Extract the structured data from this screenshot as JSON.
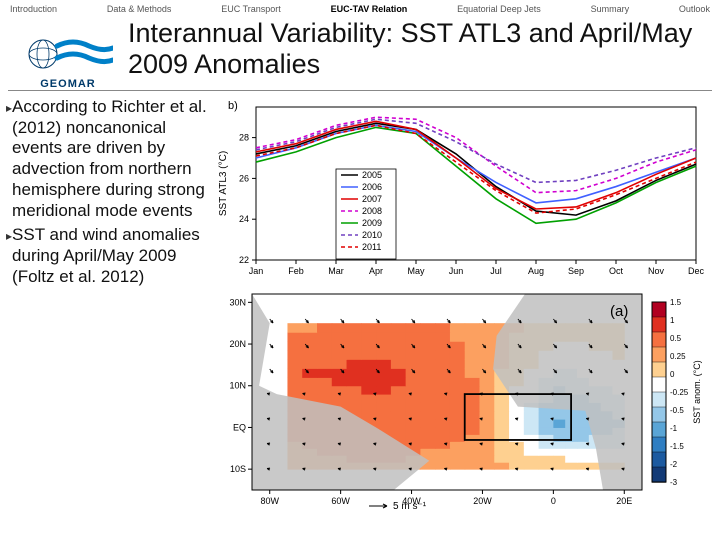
{
  "nav": {
    "items": [
      "Introduction",
      "Data & Methods",
      "EUC Transport",
      "EUC-TAV Relation",
      "Equatorial Deep Jets",
      "Summary",
      "Outlook"
    ],
    "active_index": 3
  },
  "logo": {
    "text": "GEOMAR",
    "wave_color": "#0080c8",
    "globe_color": "#003a6a"
  },
  "title": "Interannual Variability: SST ATL3 and April/May 2009 Anomalies",
  "bullets": [
    "According to Richter et al. (2012) noncanonical events are driven by advection from northern hemisphere during strong meridional mode events",
    "SST and wind anomalies during April/May 2009 (Foltz et al. 2012)"
  ],
  "linechart": {
    "type": "line",
    "panel_label": "b)",
    "ylabel": "SST ATL3 (°C)",
    "xticks": [
      "Jan",
      "Feb",
      "Mar",
      "Apr",
      "May",
      "Jun",
      "Jul",
      "Aug",
      "Sep",
      "Oct",
      "Nov",
      "Dec"
    ],
    "yticks": [
      22,
      24,
      26,
      28
    ],
    "ylim": [
      22,
      29.5
    ],
    "series": [
      {
        "label": "2005",
        "color": "#000000",
        "dash": "",
        "width": 1.6,
        "y": [
          27.2,
          27.6,
          28.3,
          28.7,
          28.4,
          27.2,
          25.6,
          24.4,
          24.2,
          24.9,
          25.9,
          26.7
        ]
      },
      {
        "label": "2006",
        "color": "#4060ff",
        "dash": "",
        "width": 1.6,
        "y": [
          27.0,
          27.5,
          28.2,
          28.6,
          28.3,
          27.0,
          25.8,
          24.8,
          25.0,
          25.6,
          26.3,
          27.0
        ]
      },
      {
        "label": "2007",
        "color": "#e00000",
        "dash": "",
        "width": 1.6,
        "y": [
          27.3,
          27.7,
          28.4,
          28.8,
          28.4,
          27.0,
          25.5,
          24.5,
          24.6,
          25.3,
          26.2,
          27.0
        ]
      },
      {
        "label": "2008",
        "color": "#d000d0",
        "dash": "4,3",
        "width": 1.6,
        "y": [
          27.5,
          27.9,
          28.6,
          29.0,
          28.9,
          28.0,
          26.6,
          25.3,
          25.4,
          26.0,
          26.8,
          27.4
        ]
      },
      {
        "label": "2009",
        "color": "#00a000",
        "dash": "",
        "width": 1.6,
        "y": [
          26.8,
          27.3,
          28.0,
          28.5,
          28.2,
          26.6,
          25.0,
          23.8,
          24.0,
          24.8,
          25.8,
          26.6
        ]
      },
      {
        "label": "2010",
        "color": "#7040c0",
        "dash": "4,3",
        "width": 1.6,
        "y": [
          27.4,
          27.8,
          28.5,
          28.9,
          28.7,
          27.8,
          26.7,
          25.8,
          25.9,
          26.4,
          27.0,
          27.5
        ]
      },
      {
        "label": "2011",
        "color": "#e00000",
        "dash": "4,3",
        "width": 1.6,
        "y": [
          27.1,
          27.5,
          28.2,
          28.6,
          28.2,
          26.8,
          25.4,
          24.3,
          24.5,
          25.2,
          26.0,
          26.8
        ]
      }
    ],
    "background_color": "#ffffff",
    "axis_color": "#000000"
  },
  "mapchart": {
    "type": "map-anomaly",
    "panel_label": "(a)",
    "xticks": [
      "80W",
      "60W",
      "40W",
      "20W",
      "0",
      "20E"
    ],
    "yticks": [
      "30N",
      "20N",
      "10N",
      "EQ",
      "10S"
    ],
    "xlim": [
      -85,
      25
    ],
    "ylim": [
      -15,
      32
    ],
    "colorbar": {
      "title": "SST anom. (°C)",
      "levels": [
        1.5,
        1,
        0.5,
        0.25,
        0,
        -0.25,
        -0.5,
        -1,
        -1.5,
        -2,
        -3
      ],
      "colors_top_to_bottom": [
        "#b10021",
        "#e03020",
        "#f57040",
        "#fca060",
        "#fed090",
        "#ffffff",
        "#cde7f5",
        "#94c7e8",
        "#5aa5d6",
        "#2f7ec2",
        "#1c5aa0",
        "#123a76"
      ]
    },
    "vector_legend": "5 m s⁻¹",
    "land_color": "#bfbfbf",
    "box": {
      "lon": [
        -25,
        5
      ],
      "lat": [
        -3,
        8
      ],
      "color": "#000"
    },
    "sst_field": {
      "comment": "coarse grid of anomaly values, south→north rows, west→east cols (5 cols × 4 rows)",
      "lons": [
        -75,
        -50,
        -25,
        0,
        20
      ],
      "lats": [
        -10,
        0,
        12,
        25
      ],
      "values": [
        [
          0.4,
          0.5,
          0.3,
          0.2,
          0.0
        ],
        [
          0.6,
          0.8,
          0.6,
          -1.0,
          -0.5
        ],
        [
          1.0,
          1.2,
          0.5,
          -0.3,
          0.0
        ],
        [
          0.3,
          0.6,
          0.4,
          0.2,
          0.1
        ]
      ]
    }
  }
}
